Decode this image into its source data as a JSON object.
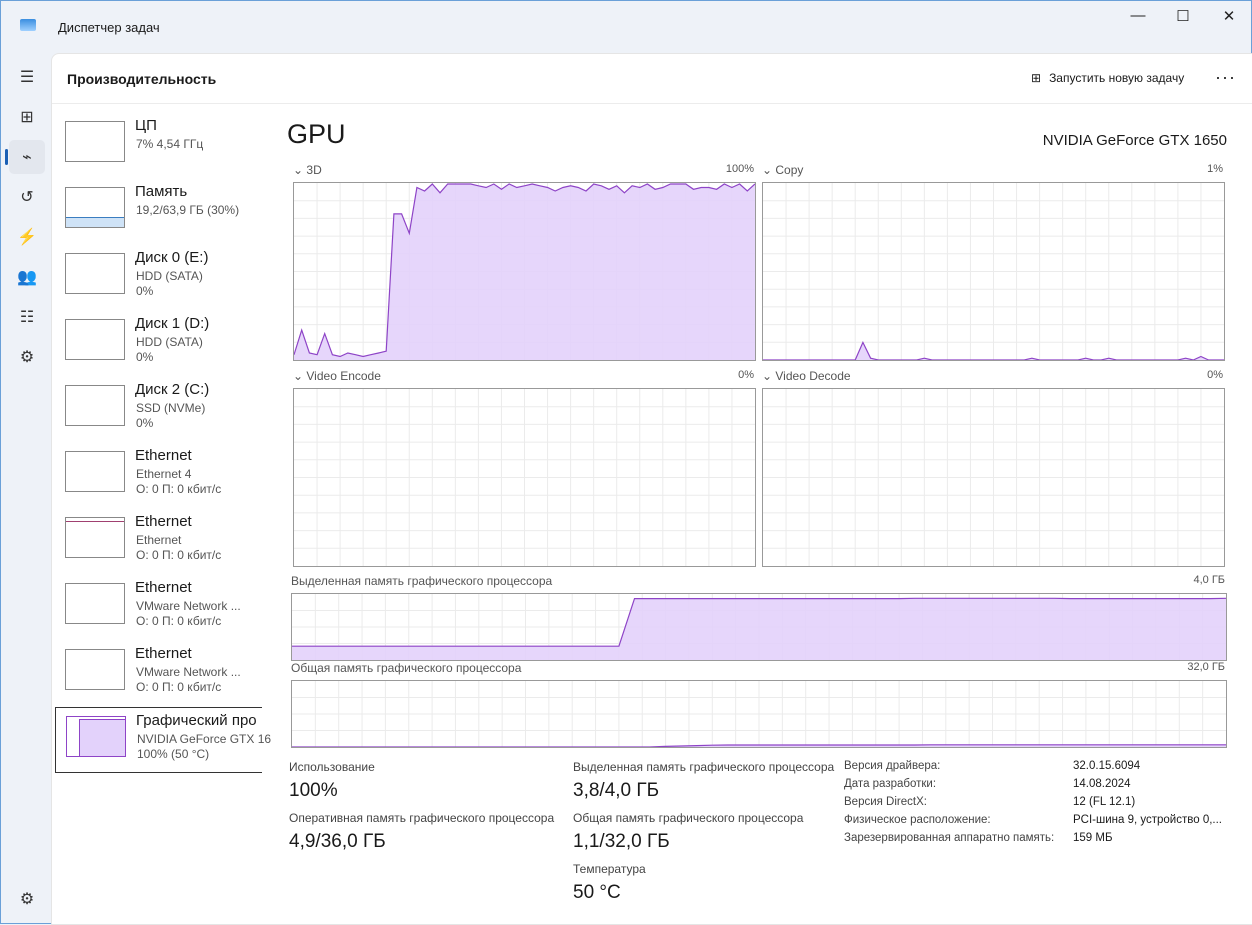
{
  "app": {
    "title": "Диспетчер задач",
    "minimize": "—",
    "maximize": "☐",
    "close": "✕"
  },
  "nav": {
    "icons": [
      "hamburger-icon",
      "processes-icon",
      "performance-icon",
      "app-history-icon",
      "startup-icon",
      "users-icon",
      "details-icon",
      "services-icon",
      "settings-icon"
    ],
    "glyphs": [
      "☰",
      "⊞",
      "⌁",
      "↺",
      "⚡",
      "👥",
      "☷",
      "⚙",
      "⚙"
    ],
    "active": 2
  },
  "header": {
    "title": "Производительность",
    "new_task": "Запустить новую задачу",
    "more": "···"
  },
  "sidebar": [
    {
      "name": "ЦП",
      "sub1": "7% 4,54 ГГц",
      "sub2": ""
    },
    {
      "name": "Память",
      "sub1": "19,2/63,9 ГБ (30%)",
      "sub2": ""
    },
    {
      "name": "Диск 0 (E:)",
      "sub1": "HDD (SATA)",
      "sub2": "0%"
    },
    {
      "name": "Диск 1 (D:)",
      "sub1": "HDD (SATA)",
      "sub2": "0%"
    },
    {
      "name": "Диск 2 (C:)",
      "sub1": "SSD (NVMe)",
      "sub2": "0%"
    },
    {
      "name": "Ethernet",
      "sub1": "Ethernet 4",
      "sub2": "О: 0 П: 0 кбит/с"
    },
    {
      "name": "Ethernet",
      "sub1": "Ethernet",
      "sub2": "О: 0 П: 0 кбит/с"
    },
    {
      "name": "Ethernet",
      "sub1": "VMware Network ...",
      "sub2": "О: 0 П: 0 кбит/с"
    },
    {
      "name": "Ethernet",
      "sub1": "VMware Network ...",
      "sub2": "О: 0 П: 0 кбит/с"
    },
    {
      "name": "Графический про",
      "sub1": "NVIDIA GeForce GTX 16",
      "sub2": "100% (50 °C)"
    }
  ],
  "gpu": {
    "title": "GPU",
    "name": "NVIDIA GeForce GTX 1650"
  },
  "colors": {
    "gpu_line": "#8e44c7",
    "gpu_fill": "#e3d2fb",
    "grid": "#ebebeb"
  },
  "chart_data": [
    {
      "type": "area",
      "name": "3D",
      "max_label": "100%",
      "ylim": [
        0,
        100
      ],
      "values": [
        3,
        17,
        4,
        3,
        15,
        3,
        2,
        4,
        3,
        2,
        3,
        4,
        5,
        83,
        83,
        72,
        98,
        96,
        100,
        95,
        100,
        100,
        100,
        100,
        99,
        98,
        100,
        97,
        100,
        98,
        99,
        100,
        99,
        98,
        96,
        98,
        99,
        98,
        96,
        100,
        99,
        97,
        99,
        95,
        99,
        98,
        100,
        97,
        98,
        100,
        100,
        100,
        97,
        98,
        98,
        97,
        100,
        98,
        100,
        96,
        100
      ]
    },
    {
      "type": "area",
      "name": "Copy",
      "max_label": "1%",
      "ylim": [
        0,
        100
      ],
      "values": [
        0,
        0,
        0,
        0,
        0,
        0,
        0,
        0,
        0,
        0,
        0,
        0,
        0,
        10,
        1,
        0,
        0,
        0,
        0,
        0,
        0,
        1,
        0,
        0,
        0,
        0,
        0,
        0,
        0,
        0,
        0,
        0,
        0,
        0,
        0,
        1,
        0,
        0,
        0,
        0,
        0,
        0,
        1,
        0,
        0,
        1,
        0,
        0,
        0,
        0,
        0,
        0,
        0,
        0,
        0,
        1,
        0,
        2,
        0,
        0,
        0
      ]
    },
    {
      "type": "area",
      "name": "Video Encode",
      "max_label": "0%",
      "ylim": [
        0,
        100
      ],
      "values": []
    },
    {
      "type": "area",
      "name": "Video Decode",
      "max_label": "0%",
      "ylim": [
        0,
        100
      ],
      "values": []
    },
    {
      "type": "area",
      "name": "Выделенная память графического процессора",
      "max_label": "4,0 ГБ",
      "ylim": [
        0,
        4
      ],
      "values": [
        0.85,
        0.85,
        0.85,
        0.85,
        0.85,
        0.85,
        0.85,
        0.85,
        0.85,
        0.85,
        0.85,
        0.85,
        0.85,
        0.85,
        0.85,
        0.85,
        0.85,
        0.85,
        0.85,
        0.85,
        0.85,
        0.85,
        3.78,
        3.78,
        3.78,
        3.78,
        3.78,
        3.78,
        3.78,
        3.78,
        3.78,
        3.78,
        3.78,
        3.78,
        3.78,
        3.78,
        3.78,
        3.78,
        3.78,
        3.78,
        3.8,
        3.8,
        3.8,
        3.8,
        3.8,
        3.8,
        3.8,
        3.8,
        3.8,
        3.8,
        3.78,
        3.78,
        3.78,
        3.78,
        3.78,
        3.78,
        3.78,
        3.78,
        3.78,
        3.78,
        3.8
      ]
    },
    {
      "type": "area",
      "name": "Общая память графического процессора",
      "max_label": "32,0 ГБ",
      "ylim": [
        0,
        32
      ],
      "values": [
        0,
        0,
        0,
        0,
        0,
        0,
        0,
        0,
        0,
        0,
        0,
        0,
        0,
        0,
        0,
        0,
        0,
        0,
        0,
        0,
        0,
        0,
        0,
        0,
        0.3,
        0.5,
        0.7,
        0.9,
        1.0,
        1.0,
        1.0,
        1.0,
        1.0,
        1.0,
        1.0,
        1.0,
        1.0,
        1.0,
        1.0,
        1.0,
        1.0,
        1.1,
        1.1,
        1.1,
        1.1,
        1.1,
        1.1,
        1.1,
        1.1,
        1.1,
        1.1,
        1.1,
        1.1,
        1.1,
        1.1,
        1.1,
        1.1,
        1.1,
        1.1,
        1.1,
        1.1
      ]
    }
  ],
  "stats": {
    "usage_label": "Использование",
    "usage": "100%",
    "ram_label": "Оперативная память графического процессора",
    "ram": "4,9/36,0 ГБ",
    "ded_label": "Выделенная память графического процессора",
    "ded": "3,8/4,0 ГБ",
    "shared_label": "Общая память графического процессора",
    "shared": "1,1/32,0 ГБ",
    "temp_label": "Температура",
    "temp": "50 °C"
  },
  "info": [
    {
      "k": "Версия драйвера:",
      "v": "32.0.15.6094"
    },
    {
      "k": "Дата разработки:",
      "v": "14.08.2024"
    },
    {
      "k": "Версия DirectX:",
      "v": "12 (FL 12.1)"
    },
    {
      "k": "Физическое расположение:",
      "v": "PCI-шина 9, устройство 0,..."
    },
    {
      "k": "Зарезервированная аппаратно память:",
      "v": "159 МБ"
    }
  ]
}
